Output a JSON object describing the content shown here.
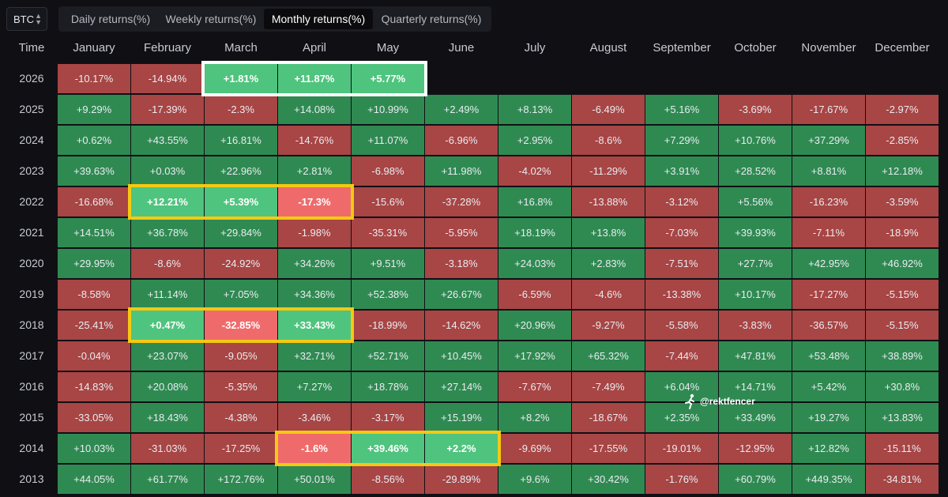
{
  "asset_selector": {
    "value": "BTC",
    "icon": "chevron-updown-icon"
  },
  "tabs": [
    {
      "label": "Daily returns(%)",
      "active": false
    },
    {
      "label": "Weekly returns(%)",
      "active": false
    },
    {
      "label": "Monthly returns(%)",
      "active": true
    },
    {
      "label": "Quarterly returns(%)",
      "active": false
    }
  ],
  "colors": {
    "positive": "#2f8a52",
    "negative": "#a84545",
    "positive_highlight": "#4fc47e",
    "negative_highlight": "#ef6b6b",
    "highlight_border_yellow": "#f5c912",
    "highlight_border_white": "#ffffff"
  },
  "watermark": {
    "text": "@rektfencer",
    "icon": "running-figure-icon"
  },
  "chart_data": {
    "type": "table",
    "corner_label": "Time",
    "columns": [
      "January",
      "February",
      "March",
      "April",
      "May",
      "June",
      "July",
      "August",
      "September",
      "October",
      "November",
      "December"
    ],
    "rows": [
      {
        "year": "2026",
        "values": [
          "-10.17%",
          "-14.94%",
          "+1.81%",
          "+11.87%",
          "+5.77%",
          "",
          "",
          "",
          "",
          "",
          "",
          ""
        ]
      },
      {
        "year": "2025",
        "values": [
          "+9.29%",
          "-17.39%",
          "-2.3%",
          "+14.08%",
          "+10.99%",
          "+2.49%",
          "+8.13%",
          "-6.49%",
          "+5.16%",
          "-3.69%",
          "-17.67%",
          "-2.97%"
        ]
      },
      {
        "year": "2024",
        "values": [
          "+0.62%",
          "+43.55%",
          "+16.81%",
          "-14.76%",
          "+11.07%",
          "-6.96%",
          "+2.95%",
          "-8.6%",
          "+7.29%",
          "+10.76%",
          "+37.29%",
          "-2.85%"
        ]
      },
      {
        "year": "2023",
        "values": [
          "+39.63%",
          "+0.03%",
          "+22.96%",
          "+2.81%",
          "-6.98%",
          "+11.98%",
          "-4.02%",
          "-11.29%",
          "+3.91%",
          "+28.52%",
          "+8.81%",
          "+12.18%"
        ]
      },
      {
        "year": "2022",
        "values": [
          "-16.68%",
          "+12.21%",
          "+5.39%",
          "-17.3%",
          "-15.6%",
          "-37.28%",
          "+16.8%",
          "-13.88%",
          "-3.12%",
          "+5.56%",
          "-16.23%",
          "-3.59%"
        ]
      },
      {
        "year": "2021",
        "values": [
          "+14.51%",
          "+36.78%",
          "+29.84%",
          "-1.98%",
          "-35.31%",
          "-5.95%",
          "+18.19%",
          "+13.8%",
          "-7.03%",
          "+39.93%",
          "-7.11%",
          "-18.9%"
        ]
      },
      {
        "year": "2020",
        "values": [
          "+29.95%",
          "-8.6%",
          "-24.92%",
          "+34.26%",
          "+9.51%",
          "-3.18%",
          "+24.03%",
          "+2.83%",
          "-7.51%",
          "+27.7%",
          "+42.95%",
          "+46.92%"
        ]
      },
      {
        "year": "2019",
        "values": [
          "-8.58%",
          "+11.14%",
          "+7.05%",
          "+34.36%",
          "+52.38%",
          "+26.67%",
          "-6.59%",
          "-4.6%",
          "-13.38%",
          "+10.17%",
          "-17.27%",
          "-5.15%"
        ]
      },
      {
        "year": "2018",
        "values": [
          "-25.41%",
          "+0.47%",
          "-32.85%",
          "+33.43%",
          "-18.99%",
          "-14.62%",
          "+20.96%",
          "-9.27%",
          "-5.58%",
          "-3.83%",
          "-36.57%",
          "-5.15%"
        ]
      },
      {
        "year": "2017",
        "values": [
          "-0.04%",
          "+23.07%",
          "-9.05%",
          "+32.71%",
          "+52.71%",
          "+10.45%",
          "+17.92%",
          "+65.32%",
          "-7.44%",
          "+47.81%",
          "+53.48%",
          "+38.89%"
        ]
      },
      {
        "year": "2016",
        "values": [
          "-14.83%",
          "+20.08%",
          "-5.35%",
          "+7.27%",
          "+18.78%",
          "+27.14%",
          "-7.67%",
          "-7.49%",
          "+6.04%",
          "+14.71%",
          "+5.42%",
          "+30.8%"
        ]
      },
      {
        "year": "2015",
        "values": [
          "-33.05%",
          "+18.43%",
          "-4.38%",
          "-3.46%",
          "-3.17%",
          "+15.19%",
          "+8.2%",
          "-18.67%",
          "+2.35%",
          "+33.49%",
          "+19.27%",
          "+13.83%"
        ]
      },
      {
        "year": "2014",
        "values": [
          "+10.03%",
          "-31.03%",
          "-17.25%",
          "-1.6%",
          "+39.46%",
          "+2.2%",
          "-9.69%",
          "-17.55%",
          "-19.01%",
          "-12.95%",
          "+12.82%",
          "-15.11%"
        ]
      },
      {
        "year": "2013",
        "values": [
          "+44.05%",
          "+61.77%",
          "+172.76%",
          "+50.01%",
          "-8.56%",
          "-29.89%",
          "+9.6%",
          "+30.42%",
          "-1.76%",
          "+60.79%",
          "+449.35%",
          "-34.81%"
        ]
      }
    ],
    "highlights": [
      {
        "year": "2026",
        "months": [
          "March",
          "April",
          "May"
        ],
        "border": "white"
      },
      {
        "year": "2022",
        "months": [
          "February",
          "March",
          "April"
        ],
        "border": "yellow"
      },
      {
        "year": "2018",
        "months": [
          "February",
          "March",
          "April"
        ],
        "border": "yellow"
      },
      {
        "year": "2014",
        "months": [
          "April",
          "May",
          "June"
        ],
        "border": "yellow"
      }
    ]
  }
}
